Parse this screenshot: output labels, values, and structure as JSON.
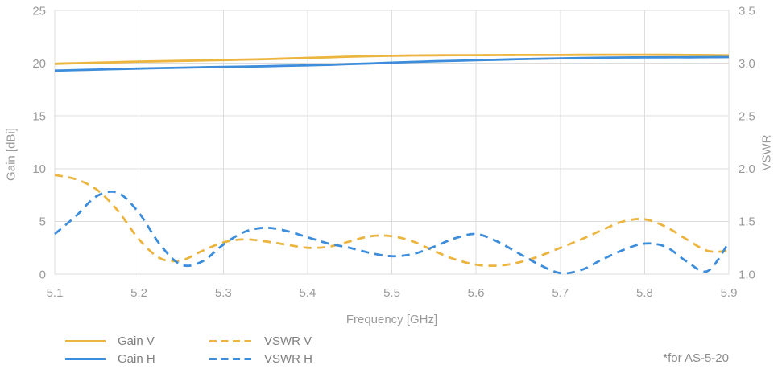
{
  "chart": {
    "note": "*for AS-5-20",
    "colors": {
      "grid": "#DCDCDC",
      "tick_text": "#9A9A9A",
      "legend_text": "#7F7F7F",
      "note_text": "#8C8C8C",
      "gain_v": "#EBB540",
      "gain_h": "#3D8DDB"
    },
    "x_axis": {
      "label": "Frequency [GHz]",
      "range": [
        5.1,
        5.9
      ],
      "ticks": [
        5.1,
        5.2,
        5.3,
        5.4,
        5.5,
        5.6,
        5.7,
        5.8,
        5.9
      ],
      "tick_labels": [
        "5.1",
        "5.2",
        "5.3",
        "5.4",
        "5.5",
        "5.6",
        "5.7",
        "5.8",
        "5.9"
      ]
    },
    "y_left": {
      "label": "Gain [dBi]",
      "range": [
        0,
        25
      ],
      "ticks": [
        0,
        5,
        10,
        15,
        20,
        25
      ],
      "tick_labels": [
        "0",
        "5",
        "10",
        "15",
        "20",
        "25"
      ]
    },
    "y_right": {
      "label": "VSWR",
      "range": [
        1.0,
        3.5
      ],
      "ticks": [
        1.0,
        1.5,
        2.0,
        2.5,
        3.0,
        3.5
      ],
      "tick_labels": [
        "1.0",
        "1.5",
        "2.0",
        "2.5",
        "3.0",
        "3.5"
      ]
    }
  },
  "chart_data": {
    "type": "line",
    "title": "",
    "xlabel": "Frequency [GHz]",
    "ylabel_left": "Gain [dBi]",
    "ylabel_right": "VSWR",
    "xlim": [
      5.1,
      5.9
    ],
    "ylim_left": [
      0,
      25
    ],
    "ylim_right": [
      1.0,
      3.5
    ],
    "grid": true,
    "legend_position": "bottom-left",
    "x": [
      5.1,
      5.125,
      5.15,
      5.175,
      5.2,
      5.225,
      5.25,
      5.275,
      5.3,
      5.325,
      5.35,
      5.375,
      5.4,
      5.425,
      5.45,
      5.475,
      5.5,
      5.525,
      5.55,
      5.575,
      5.6,
      5.625,
      5.65,
      5.675,
      5.7,
      5.725,
      5.75,
      5.775,
      5.8,
      5.825,
      5.85,
      5.875,
      5.9
    ],
    "series": [
      {
        "name": "Gain V",
        "axis": "left",
        "style": "solid",
        "color": "#EBB540",
        "values": [
          19.95,
          20.0,
          20.05,
          20.1,
          20.15,
          20.18,
          20.22,
          20.26,
          20.3,
          20.34,
          20.38,
          20.44,
          20.5,
          20.56,
          20.62,
          20.67,
          20.7,
          20.73,
          20.75,
          20.76,
          20.76,
          20.77,
          20.78,
          20.78,
          20.78,
          20.79,
          20.8,
          20.8,
          20.8,
          20.8,
          20.78,
          20.77,
          20.75
        ]
      },
      {
        "name": "Gain H",
        "axis": "left",
        "style": "solid",
        "color": "#3D8DDB",
        "values": [
          19.3,
          19.35,
          19.4,
          19.45,
          19.5,
          19.54,
          19.58,
          19.62,
          19.65,
          19.68,
          19.72,
          19.76,
          19.8,
          19.85,
          19.92,
          19.98,
          20.05,
          20.12,
          20.18,
          20.23,
          20.28,
          20.33,
          20.38,
          20.42,
          20.46,
          20.49,
          20.52,
          20.54,
          20.55,
          20.56,
          20.56,
          20.57,
          20.58
        ]
      },
      {
        "name": "VSWR V",
        "axis": "right",
        "style": "dashed",
        "color": "#EBB540",
        "values": [
          1.94,
          1.9,
          1.8,
          1.6,
          1.33,
          1.15,
          1.13,
          1.22,
          1.3,
          1.33,
          1.31,
          1.28,
          1.25,
          1.26,
          1.31,
          1.36,
          1.36,
          1.31,
          1.22,
          1.14,
          1.09,
          1.08,
          1.11,
          1.17,
          1.25,
          1.33,
          1.42,
          1.5,
          1.52,
          1.45,
          1.33,
          1.22,
          1.22
        ]
      },
      {
        "name": "VSWR H",
        "axis": "right",
        "style": "dashed",
        "color": "#3D8DDB",
        "values": [
          1.38,
          1.55,
          1.74,
          1.77,
          1.58,
          1.28,
          1.09,
          1.12,
          1.28,
          1.4,
          1.44,
          1.41,
          1.35,
          1.29,
          1.25,
          1.2,
          1.17,
          1.19,
          1.26,
          1.34,
          1.38,
          1.31,
          1.2,
          1.09,
          1.01,
          1.04,
          1.14,
          1.23,
          1.29,
          1.26,
          1.12,
          1.03,
          1.3
        ]
      }
    ]
  },
  "legend": {
    "items": [
      "Gain V",
      "Gain H",
      "VSWR V",
      "VSWR H"
    ]
  }
}
